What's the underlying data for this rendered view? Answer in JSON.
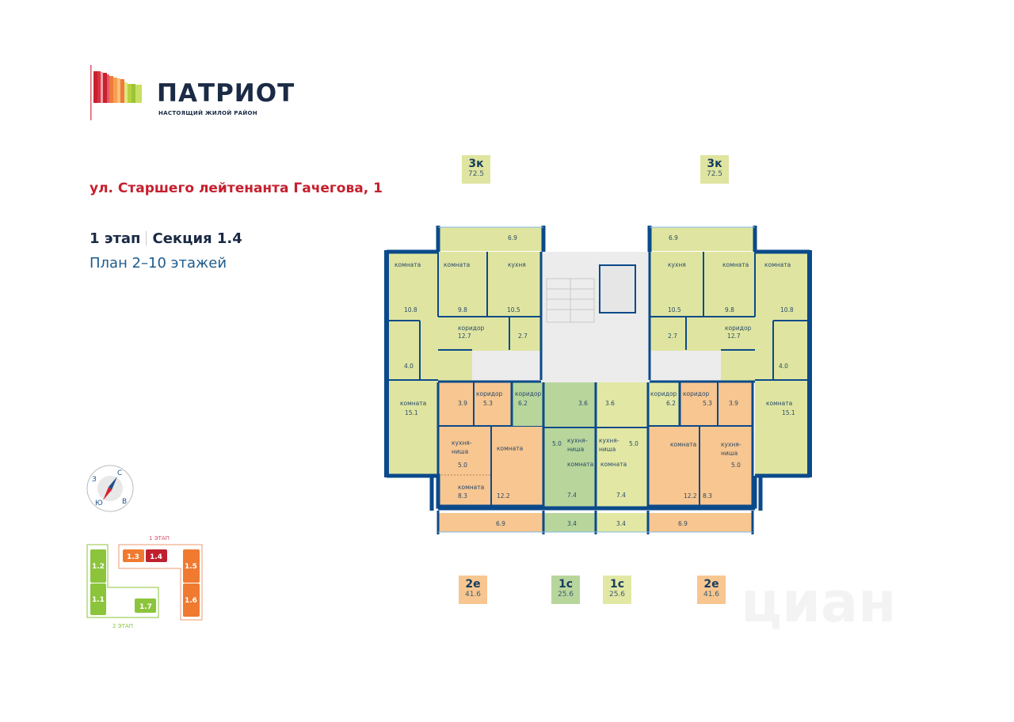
{
  "logo": {
    "brand": "ПАТРИОТ",
    "tagline": "НАСТОЯЩИЙ ЖИЛОЙ РАЙОН",
    "bar_colors": [
      "#c8202f",
      "#e05a6a",
      "#f0a0a8",
      "#f07a3a",
      "#f5b070",
      "#b8d040",
      "#9cc43a"
    ]
  },
  "header": {
    "address": "ул. Старшего лейтенанта Гачегова, 1",
    "stage": "1 этап",
    "section": "Секция 1.4",
    "plan": "План 2–10 этажей"
  },
  "colors": {
    "three_room": "#dfe5a0",
    "two_room": "#f8c690",
    "studio_green": "#b8d69c",
    "studio_yellow": "#e2e8a4",
    "walls": "#0b4a8a",
    "common": "#ececec",
    "accent": "#c61f2e"
  },
  "badges": {
    "top_left": {
      "type": "3к",
      "area": "72.5"
    },
    "top_right": {
      "type": "3к",
      "area": "72.5"
    },
    "bottom": [
      {
        "type": "2е",
        "area": "41.6"
      },
      {
        "type": "1с",
        "area": "25.6"
      },
      {
        "type": "1с",
        "area": "25.6"
      },
      {
        "type": "2е",
        "area": "41.6"
      }
    ]
  },
  "apartments": {
    "left_3k": {
      "balcony": "6.9",
      "room1": "комната",
      "room1_area": "10.8",
      "room2": "комната",
      "room2_area": "9.8",
      "kitchen": "кухня",
      "kitchen_area": "10.5",
      "corridor": "коридор",
      "corridor_area": "12.7",
      "wc_area": "2.7",
      "bath_area": "4.0",
      "room3": "комната",
      "room3_area": "15.1"
    },
    "right_3k": {
      "balcony": "6.9",
      "room1": "комната",
      "room1_area": "10.8",
      "room2": "комната",
      "room2_area": "9.8",
      "kitchen": "кухня",
      "kitchen_area": "10.5",
      "corridor": "коридор",
      "corridor_area": "12.7",
      "wc_area": "2.7",
      "bath_area": "4.0",
      "room3": "комната",
      "room3_area": "15.1"
    },
    "left_2e": {
      "bath_area": "3.9",
      "corridor": "коридор",
      "corridor_area": "5.3",
      "kitchen_line1": "кухня-",
      "kitchen_line2": "ниша",
      "kitchen_area": "5.0",
      "room_small": "комната",
      "room_small_area": "8.3",
      "room_big": "комната",
      "room_big_area": "12.2",
      "balcony": "6.9"
    },
    "right_2e": {
      "bath_area": "3.9",
      "corridor": "коридор",
      "corridor_area": "5.3",
      "kitchen_line1": "кухня-",
      "kitchen_line2": "ниша",
      "kitchen_area": "5.0",
      "room_small_area": "8.3",
      "room_big": "комната",
      "room_big_area": "12.2",
      "balcony": "6.9"
    },
    "left_1c": {
      "corridor": "коридор",
      "corridor_area": "6.2",
      "bath_area": "3.6",
      "kitchen_line1": "кухня-",
      "kitchen_line2": "ниша",
      "kitchen_area": "5.0",
      "room": "комната",
      "room_area": "7.4",
      "balcony": "3.4"
    },
    "right_1c": {
      "corridor": "коридор",
      "corridor_area": "6.2",
      "bath_area": "3.6",
      "kitchen_line1": "кухня-",
      "kitchen_line2": "ниша",
      "kitchen_area": "5.0",
      "room": "комната",
      "room_area": "7.4",
      "balcony": "3.4"
    }
  },
  "compass": {
    "n": "С",
    "s": "Ю",
    "e": "В",
    "w": "З"
  },
  "site_map": {
    "stage1_label": "1 ЭТАП",
    "stage2_label": "2 ЭТАП",
    "sections": [
      {
        "id": "1.1",
        "color": "#8cc43c"
      },
      {
        "id": "1.2",
        "color": "#8cc43c"
      },
      {
        "id": "1.3",
        "color": "#ef7a30"
      },
      {
        "id": "1.4",
        "color": "#c0202e",
        "current": true
      },
      {
        "id": "1.5",
        "color": "#ef7a30"
      },
      {
        "id": "1.6",
        "color": "#ef7a30"
      },
      {
        "id": "1.7",
        "color": "#8cc43c"
      }
    ]
  },
  "watermark": "циан"
}
